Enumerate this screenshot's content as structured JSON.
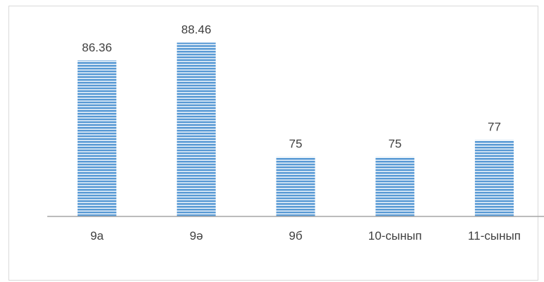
{
  "chart_data": {
    "type": "bar",
    "title": "",
    "xlabel": "",
    "ylabel": "",
    "categories": [
      "9а",
      "9ә",
      "9б",
      "10-сынып",
      "11-сынып"
    ],
    "values": [
      86.36,
      88.46,
      75,
      75,
      77
    ],
    "value_labels": [
      "86.36",
      "88.46",
      "75",
      "75",
      "77"
    ],
    "ylim": [
      68,
      89
    ],
    "grid": false,
    "legend": "none",
    "bar_fill": "#5b9bd5",
    "bar_stripe": "#ffffff",
    "axis_color": "#a6a6a6"
  }
}
